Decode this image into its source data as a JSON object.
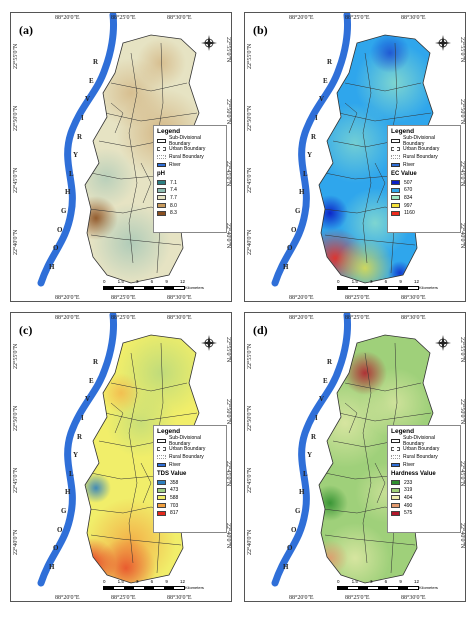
{
  "coords": {
    "top": [
      "88°20'0\"E",
      "88°25'0\"E",
      "88°30'0\"E"
    ],
    "bottom": [
      "88°20'0\"E",
      "88°25'0\"E",
      "88°30'0\"E"
    ],
    "left": [
      "22°55'0\"N",
      "22°50'0\"N",
      "22°45'0\"N",
      "22°40'0\"N"
    ],
    "right": [
      "22°55'0\"N",
      "22°50'0\"N",
      "22°45'0\"N",
      "22°40'0\"N"
    ]
  },
  "river_name_letters": [
    "H",
    "O",
    "O",
    "G",
    "H",
    "L",
    "Y",
    "R",
    "I",
    "V",
    "E",
    "R"
  ],
  "scale": {
    "ticks": [
      "0",
      "1.5",
      "3",
      "6",
      "9",
      "12"
    ],
    "unit": "Kilometers"
  },
  "legend_common": {
    "title": "Legend",
    "items": [
      "Sub-Divisional Boundary",
      "Urban Boundary",
      "Rural Boundary",
      "River"
    ]
  },
  "panels": [
    {
      "label": "(a)",
      "value_title": "pH",
      "classes": [
        {
          "value": "7.1",
          "color": "#2b7f83"
        },
        {
          "value": "7.4",
          "color": "#8cbcb1"
        },
        {
          "value": "7.7",
          "color": "#e6e3c3"
        },
        {
          "value": "8.0",
          "color": "#c89a5d"
        },
        {
          "value": "8.3",
          "color": "#8a4e1f"
        }
      ]
    },
    {
      "label": "(b)",
      "value_title": "EC Value",
      "classes": [
        {
          "value": "507",
          "color": "#0a1fc7"
        },
        {
          "value": "670",
          "color": "#2fa6ec"
        },
        {
          "value": "834",
          "color": "#9fe9c5"
        },
        {
          "value": "997",
          "color": "#f5e23a"
        },
        {
          "value": "1160",
          "color": "#ef2a1c"
        }
      ]
    },
    {
      "label": "(c)",
      "value_title": "TDS Value",
      "classes": [
        {
          "value": "358",
          "color": "#2e7fbf"
        },
        {
          "value": "473",
          "color": "#9fcf85"
        },
        {
          "value": "588",
          "color": "#f1ee6a"
        },
        {
          "value": "703",
          "color": "#f2a040"
        },
        {
          "value": "817",
          "color": "#e5281c"
        }
      ]
    },
    {
      "label": "(d)",
      "value_title": "Hardness Value",
      "classes": [
        {
          "value": "233",
          "color": "#2f8f2f"
        },
        {
          "value": "319",
          "color": "#9fd07a"
        },
        {
          "value": "404",
          "color": "#eeeeb0"
        },
        {
          "value": "490",
          "color": "#e29a6e"
        },
        {
          "value": "575",
          "color": "#b2162a"
        }
      ]
    }
  ],
  "colors": {
    "river": "#2f6fd8",
    "boundary": "#333333"
  }
}
